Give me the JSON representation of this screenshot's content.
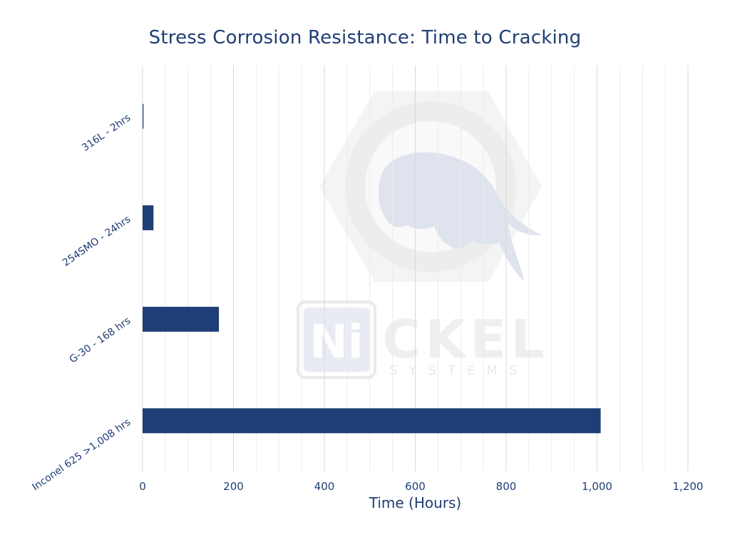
{
  "chart_data": {
    "type": "bar",
    "orientation": "horizontal",
    "title": "Stress Corrosion Resistance: Time to Cracking",
    "xlabel": "Time (Hours)",
    "ylabel": "",
    "xlim": [
      0,
      1200
    ],
    "x_ticks": [
      0,
      200,
      400,
      600,
      800,
      1000,
      1200
    ],
    "x_tick_labels": [
      "0",
      "200",
      "400",
      "600",
      "800",
      "1,000",
      "1,200"
    ],
    "grid": true,
    "legend": "none",
    "categories": [
      "316L - 2hrs",
      "254SMO - 24hrs",
      "G-30 - 168 hrs",
      "Inconel 625 >1,008 hrs"
    ],
    "values": [
      2,
      24,
      168,
      1008
    ]
  },
  "watermark": {
    "logo_text": "NiCKEL",
    "logo_subtext": "SYSTEMS"
  },
  "colors": {
    "bar": "#1f3e75",
    "text": "#1f3e75",
    "grid_major": "#d9d9d9",
    "grid_minor": "#ececec"
  }
}
